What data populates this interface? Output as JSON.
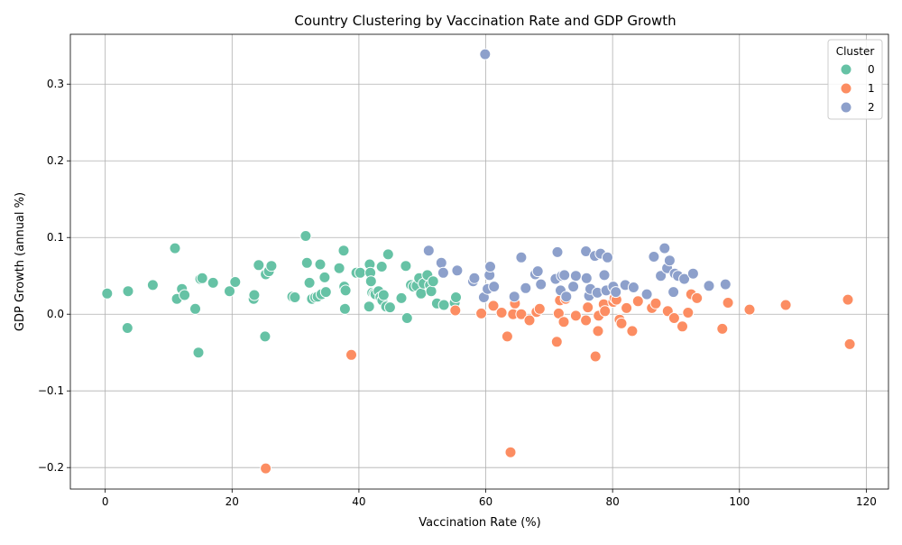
{
  "chart_data": {
    "type": "scatter",
    "title": "Country Clustering by Vaccination Rate and GDP Growth",
    "xlabel": "Vaccination Rate (%)",
    "ylabel": "GDP Growth (annual %)",
    "xlim": [
      -5.5,
      123.5
    ],
    "ylim": [
      -0.228,
      0.365
    ],
    "xticks": [
      0,
      20,
      40,
      60,
      80,
      100,
      120
    ],
    "xtick_labels": [
      "0",
      "20",
      "40",
      "60",
      "80",
      "100",
      "120"
    ],
    "yticks": [
      -0.2,
      -0.1,
      0.0,
      0.1,
      0.2,
      0.3
    ],
    "ytick_labels": [
      "−0.2",
      "−0.1",
      "0.0",
      "0.1",
      "0.2",
      "0.3"
    ],
    "grid": true,
    "legend": {
      "title": "Cluster",
      "placement": "top-right"
    },
    "series": [
      {
        "name": "0",
        "color": "#66c2a5",
        "points": [
          [
            0.3,
            0.027
          ],
          [
            3.6,
            0.03
          ],
          [
            3.5,
            -0.018
          ],
          [
            7.5,
            0.038
          ],
          [
            11,
            0.086
          ],
          [
            11.3,
            0.02
          ],
          [
            12.1,
            0.033
          ],
          [
            12.5,
            0.025
          ],
          [
            14.2,
            0.007
          ],
          [
            14.7,
            -0.05
          ],
          [
            15,
            0.046
          ],
          [
            15.3,
            0.047
          ],
          [
            17,
            0.041
          ],
          [
            19.6,
            0.03
          ],
          [
            20.5,
            0.042
          ],
          [
            23.4,
            0.02
          ],
          [
            23.5,
            0.025
          ],
          [
            24.2,
            0.064
          ],
          [
            25.2,
            -0.029
          ],
          [
            25.3,
            0.052
          ],
          [
            25.8,
            0.056
          ],
          [
            26.2,
            0.063
          ],
          [
            29.5,
            0.023
          ],
          [
            29.9,
            0.022
          ],
          [
            31.6,
            0.102
          ],
          [
            31.8,
            0.067
          ],
          [
            32.2,
            0.041
          ],
          [
            32.6,
            0.02
          ],
          [
            33.1,
            0.022
          ],
          [
            33.5,
            0.023
          ],
          [
            33.9,
            0.065
          ],
          [
            34.1,
            0.026
          ],
          [
            34.6,
            0.048
          ],
          [
            34.8,
            0.029
          ],
          [
            36.9,
            0.06
          ],
          [
            37.6,
            0.083
          ],
          [
            37.7,
            0.036
          ],
          [
            37.8,
            0.007
          ],
          [
            37.9,
            0.031
          ],
          [
            39.6,
            0.054
          ],
          [
            40.2,
            0.054
          ],
          [
            41.6,
            0.01
          ],
          [
            41.7,
            0.065
          ],
          [
            41.8,
            0.054
          ],
          [
            41.9,
            0.043
          ],
          [
            42.1,
            0.028
          ],
          [
            42.4,
            0.027
          ],
          [
            42.6,
            0.026
          ],
          [
            43.1,
            0.03
          ],
          [
            43.4,
            0.022
          ],
          [
            43.6,
            0.062
          ],
          [
            43.7,
            0.018
          ],
          [
            43.9,
            0.025
          ],
          [
            44.3,
            0.01
          ],
          [
            44.6,
            0.078
          ],
          [
            44.9,
            0.009
          ],
          [
            46.7,
            0.021
          ],
          [
            47.4,
            0.063
          ],
          [
            47.6,
            -0.005
          ],
          [
            48.2,
            0.038
          ],
          [
            48.6,
            0.036
          ],
          [
            49.1,
            0.037
          ],
          [
            49.5,
            0.047
          ],
          [
            49.8,
            0.027
          ],
          [
            50.2,
            0.04
          ],
          [
            50.8,
            0.051
          ],
          [
            51.2,
            0.038
          ],
          [
            51.4,
            0.03
          ],
          [
            51.7,
            0.043
          ],
          [
            52.3,
            0.014
          ],
          [
            53.4,
            0.012
          ],
          [
            55.1,
            0.015
          ],
          [
            55.3,
            0.022
          ]
        ]
      },
      {
        "name": "1",
        "color": "#fc8d62",
        "points": [
          [
            25.3,
            -0.201
          ],
          [
            38.8,
            -0.053
          ],
          [
            55.2,
            0.005
          ],
          [
            59.3,
            0.001
          ],
          [
            61.2,
            0.011
          ],
          [
            62.5,
            0.002
          ],
          [
            63.4,
            -0.029
          ],
          [
            63.9,
            -0.18
          ],
          [
            64.3,
            0.0
          ],
          [
            64.6,
            0.014
          ],
          [
            65.6,
            0.0
          ],
          [
            66.9,
            -0.008
          ],
          [
            68,
            0.003
          ],
          [
            68.5,
            0.007
          ],
          [
            71.2,
            -0.036
          ],
          [
            71.5,
            0.001
          ],
          [
            71.7,
            0.018
          ],
          [
            72.3,
            -0.01
          ],
          [
            72.6,
            0.02
          ],
          [
            74.2,
            -0.002
          ],
          [
            75.8,
            -0.008
          ],
          [
            76.1,
            0.009
          ],
          [
            77.3,
            -0.055
          ],
          [
            77.7,
            -0.022
          ],
          [
            77.8,
            -0.002
          ],
          [
            78.6,
            0.013
          ],
          [
            78.8,
            0.004
          ],
          [
            80.1,
            0.016
          ],
          [
            80.3,
            0.021
          ],
          [
            80.6,
            0.019
          ],
          [
            81.1,
            -0.007
          ],
          [
            81.4,
            -0.012
          ],
          [
            82.2,
            0.008
          ],
          [
            83.1,
            -0.022
          ],
          [
            84,
            0.017
          ],
          [
            86.2,
            0.008
          ],
          [
            86.8,
            0.014
          ],
          [
            88.7,
            0.004
          ],
          [
            89.7,
            -0.005
          ],
          [
            91,
            -0.016
          ],
          [
            91.9,
            0.002
          ],
          [
            92.4,
            0.026
          ],
          [
            93.3,
            0.021
          ],
          [
            97.3,
            -0.019
          ],
          [
            98.2,
            0.015
          ],
          [
            101.6,
            0.006
          ],
          [
            107.3,
            0.012
          ],
          [
            117.1,
            0.019
          ],
          [
            117.4,
            -0.039
          ]
        ]
      },
      {
        "name": "2",
        "color": "#8da0cb",
        "points": [
          [
            53,
            0.067
          ],
          [
            53.3,
            0.054
          ],
          [
            51,
            0.083
          ],
          [
            55.5,
            0.057
          ],
          [
            58,
            0.043
          ],
          [
            58.2,
            0.047
          ],
          [
            59.7,
            0.022
          ],
          [
            60.3,
            0.033
          ],
          [
            60.6,
            0.051
          ],
          [
            60.7,
            0.062
          ],
          [
            61.3,
            0.036
          ],
          [
            64.5,
            0.023
          ],
          [
            65.6,
            0.074
          ],
          [
            66.3,
            0.034
          ],
          [
            67.8,
            0.052
          ],
          [
            68.2,
            0.056
          ],
          [
            68.7,
            0.039
          ],
          [
            71,
            0.046
          ],
          [
            71.3,
            0.081
          ],
          [
            71.8,
            0.031
          ],
          [
            72,
            0.05
          ],
          [
            72.4,
            0.051
          ],
          [
            72.7,
            0.023
          ],
          [
            73.8,
            0.036
          ],
          [
            74.2,
            0.05
          ],
          [
            75.8,
            0.082
          ],
          [
            75.9,
            0.047
          ],
          [
            76.3,
            0.024
          ],
          [
            76.5,
            0.033
          ],
          [
            77.2,
            0.076
          ],
          [
            77.6,
            0.028
          ],
          [
            78.1,
            0.079
          ],
          [
            78.7,
            0.051
          ],
          [
            79,
            0.031
          ],
          [
            79.2,
            0.074
          ],
          [
            80.1,
            0.036
          ],
          [
            80.5,
            0.029
          ],
          [
            82,
            0.038
          ],
          [
            83.3,
            0.035
          ],
          [
            85.4,
            0.026
          ],
          [
            86.5,
            0.075
          ],
          [
            87.6,
            0.05
          ],
          [
            88.2,
            0.086
          ],
          [
            88.6,
            0.06
          ],
          [
            89,
            0.07
          ],
          [
            89.6,
            0.029
          ],
          [
            89.8,
            0.053
          ],
          [
            90.3,
            0.05
          ],
          [
            91.3,
            0.046
          ],
          [
            92.7,
            0.053
          ],
          [
            95.2,
            0.037
          ],
          [
            97.8,
            0.039
          ],
          [
            59.9,
            0.339
          ]
        ]
      }
    ]
  }
}
